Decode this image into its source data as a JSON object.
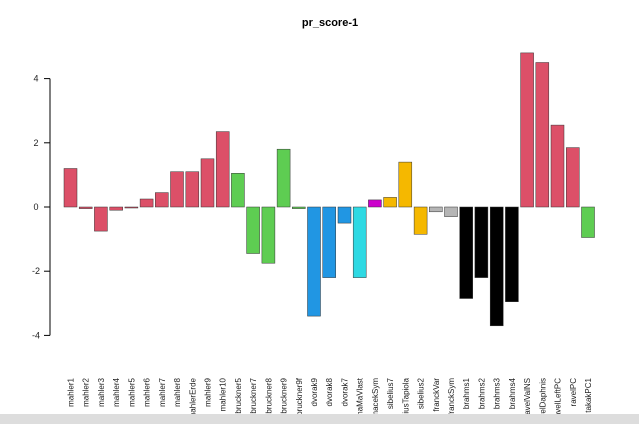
{
  "chart_data": {
    "type": "bar",
    "title": "pr_score-1",
    "xlabel": "",
    "ylabel": "",
    "ylim": [
      -4.4,
      4.9
    ],
    "yticks": [
      -4,
      -2,
      0,
      2,
      4
    ],
    "categories": [
      "mahler1",
      "mahler2",
      "mahler3",
      "mahler4",
      "mahler5",
      "mahler6",
      "mahler7",
      "mahler8",
      "mahlerErde",
      "mahler9",
      "mahler10",
      "bruckner5",
      "bruckner7",
      "bruckner8",
      "bruckner9",
      "bruckner9f",
      "dvorak9",
      "dvorak8",
      "dvorak7",
      "inaMaVlast",
      "smacekSym",
      "sibelius7",
      "liusTapiola",
      "sibelius2",
      "franckVar",
      "franckSym",
      "brahms1",
      "brahms2",
      "brahms3",
      "brahms4",
      "ravelValNS",
      "velDaphnis",
      "avelLeftPC",
      "ravelPC",
      "takakPC1"
    ],
    "values": [
      1.2,
      -0.05,
      -0.75,
      -0.1,
      0.0,
      0.25,
      0.45,
      1.1,
      1.1,
      1.5,
      2.35,
      1.05,
      -1.45,
      -1.75,
      1.8,
      -0.05,
      -3.4,
      -2.2,
      -0.5,
      -2.2,
      0.22,
      0.3,
      1.4,
      -0.85,
      -0.15,
      -0.3,
      -2.85,
      -2.2,
      -3.7,
      -2.95,
      4.8,
      4.5,
      2.55,
      1.85,
      -0.95
    ],
    "colors": [
      "#dc5068",
      "#dc5068",
      "#dc5068",
      "#dc5068",
      "#dc5068",
      "#dc5068",
      "#dc5068",
      "#dc5068",
      "#dc5068",
      "#dc5068",
      "#dc5068",
      "#5ecd52",
      "#5ecd52",
      "#5ecd52",
      "#5ecd52",
      "#5ecd52",
      "#2196e3",
      "#2196e3",
      "#2196e3",
      "#2ed9e3",
      "#cc00cc",
      "#f5b800",
      "#f5b800",
      "#f5b800",
      "#b5b5b5",
      "#b5b5b5",
      "#000000",
      "#000000",
      "#000000",
      "#000000",
      "#dc5068",
      "#dc5068",
      "#dc5068",
      "#dc5068",
      "#5ecd52"
    ],
    "grid": false,
    "legend": "none"
  }
}
